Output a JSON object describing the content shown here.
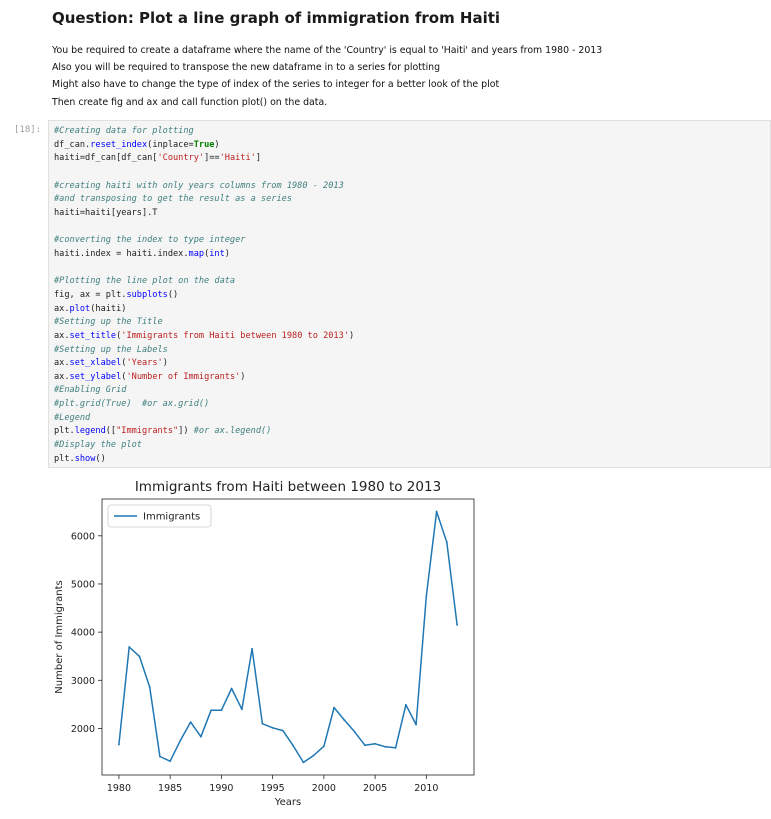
{
  "markdown": {
    "heading": "Question: Plot a line graph of immigration from Haiti",
    "lines": [
      "You be required to create a dataframe where the name of the 'Country' is equal to 'Haiti' and years from 1980 - 2013",
      "Also you will be required to transpose the new dataframe in to a series for plotting",
      "Might also have to change the type of index of the series to integer for a better look of the plot",
      "Then create fig and ax and call function plot() on the data."
    ]
  },
  "cell": {
    "prompt": "[18]:",
    "code_lines": [
      [
        {
          "t": "#Creating data for plotting",
          "c": "c"
        }
      ],
      [
        {
          "t": "df_can.",
          "c": ""
        },
        {
          "t": "reset_index",
          "c": "f"
        },
        {
          "t": "(inplace=",
          "c": ""
        },
        {
          "t": "True",
          "c": "k"
        },
        {
          "t": ")",
          "c": ""
        }
      ],
      [
        {
          "t": "haiti=df_can[df_can[",
          "c": ""
        },
        {
          "t": "'Country'",
          "c": "s"
        },
        {
          "t": "]==",
          "c": ""
        },
        {
          "t": "'Haiti'",
          "c": "s"
        },
        {
          "t": "]",
          "c": ""
        }
      ],
      [],
      [
        {
          "t": "#creating haiti with only years columns from 1980 - 2013",
          "c": "c"
        }
      ],
      [
        {
          "t": "#and transposing to get the result as a series",
          "c": "c"
        }
      ],
      [
        {
          "t": "haiti=haiti[years].T",
          "c": ""
        }
      ],
      [],
      [
        {
          "t": "#converting the index to type integer",
          "c": "c"
        }
      ],
      [
        {
          "t": "haiti.index = haiti.index.",
          "c": ""
        },
        {
          "t": "map",
          "c": "f"
        },
        {
          "t": "(",
          "c": ""
        },
        {
          "t": "int",
          "c": "f"
        },
        {
          "t": ")",
          "c": ""
        }
      ],
      [],
      [
        {
          "t": "#Plotting the line plot on the data",
          "c": "c"
        }
      ],
      [
        {
          "t": "fig, ax = plt.",
          "c": ""
        },
        {
          "t": "subplots",
          "c": "f"
        },
        {
          "t": "()",
          "c": ""
        }
      ],
      [
        {
          "t": "ax.",
          "c": ""
        },
        {
          "t": "plot",
          "c": "f"
        },
        {
          "t": "(haiti)",
          "c": ""
        }
      ],
      [
        {
          "t": "#Setting up the Title",
          "c": "c"
        }
      ],
      [
        {
          "t": "ax.",
          "c": ""
        },
        {
          "t": "set_title",
          "c": "f"
        },
        {
          "t": "(",
          "c": ""
        },
        {
          "t": "'Immigrants from Haiti between 1980 to 2013'",
          "c": "s"
        },
        {
          "t": ")",
          "c": ""
        }
      ],
      [
        {
          "t": "#Setting up the Labels",
          "c": "c"
        }
      ],
      [
        {
          "t": "ax.",
          "c": ""
        },
        {
          "t": "set_xlabel",
          "c": "f"
        },
        {
          "t": "(",
          "c": ""
        },
        {
          "t": "'Years'",
          "c": "s"
        },
        {
          "t": ")",
          "c": ""
        }
      ],
      [
        {
          "t": "ax.",
          "c": ""
        },
        {
          "t": "set_ylabel",
          "c": "f"
        },
        {
          "t": "(",
          "c": ""
        },
        {
          "t": "'Number of Immigrants'",
          "c": "s"
        },
        {
          "t": ")",
          "c": ""
        }
      ],
      [
        {
          "t": "#Enabling Grid",
          "c": "c"
        }
      ],
      [
        {
          "t": "#plt.grid(True)  #or ax.grid()",
          "c": "c"
        }
      ],
      [
        {
          "t": "#Legend",
          "c": "c"
        }
      ],
      [
        {
          "t": "plt.",
          "c": ""
        },
        {
          "t": "legend",
          "c": "f"
        },
        {
          "t": "([",
          "c": ""
        },
        {
          "t": "\"Immigrants\"",
          "c": "s"
        },
        {
          "t": "]) ",
          "c": ""
        },
        {
          "t": "#or ax.legend()",
          "c": "c"
        }
      ],
      [
        {
          "t": "#Display the plot",
          "c": "c"
        }
      ],
      [
        {
          "t": "plt.",
          "c": ""
        },
        {
          "t": "show",
          "c": "f"
        },
        {
          "t": "()",
          "c": ""
        }
      ]
    ]
  },
  "colors": {
    "line": "#1f77b4"
  },
  "chart_data": {
    "type": "line",
    "title": "Immigrants from Haiti between 1980 to 2013",
    "xlabel": "Years",
    "ylabel": "Number of Immigrants",
    "x": [
      1980,
      1981,
      1982,
      1983,
      1984,
      1985,
      1986,
      1987,
      1988,
      1989,
      1990,
      1991,
      1992,
      1993,
      1994,
      1995,
      1996,
      1997,
      1998,
      1999,
      2000,
      2001,
      2002,
      2003,
      2004,
      2005,
      2006,
      2007,
      2008,
      2009,
      2010,
      2011,
      2012,
      2013
    ],
    "series": [
      {
        "name": "Immigrants",
        "values": [
          1666,
          3692,
          3498,
          2860,
          1418,
          1321,
          1753,
          2132,
          1829,
          2377,
          2379,
          2829,
          2399,
          3655,
          2100,
          2014,
          1955,
          1645,
          1295,
          1439,
          1631,
          2433,
          2174,
          1930,
          1652,
          1682,
          1619,
          1598,
          2491,
          2080,
          4744,
          6503,
          5868,
          4152
        ]
      }
    ],
    "xlim": [
      1978.35,
      2014.65
    ],
    "ylim": [
      1034,
      6764
    ],
    "xticks": [
      "1980",
      "1985",
      "1990",
      "1995",
      "2000",
      "2005",
      "2010"
    ],
    "yticks": [
      "2000",
      "3000",
      "4000",
      "5000",
      "6000"
    ],
    "legend": "upper-left",
    "grid": false
  }
}
